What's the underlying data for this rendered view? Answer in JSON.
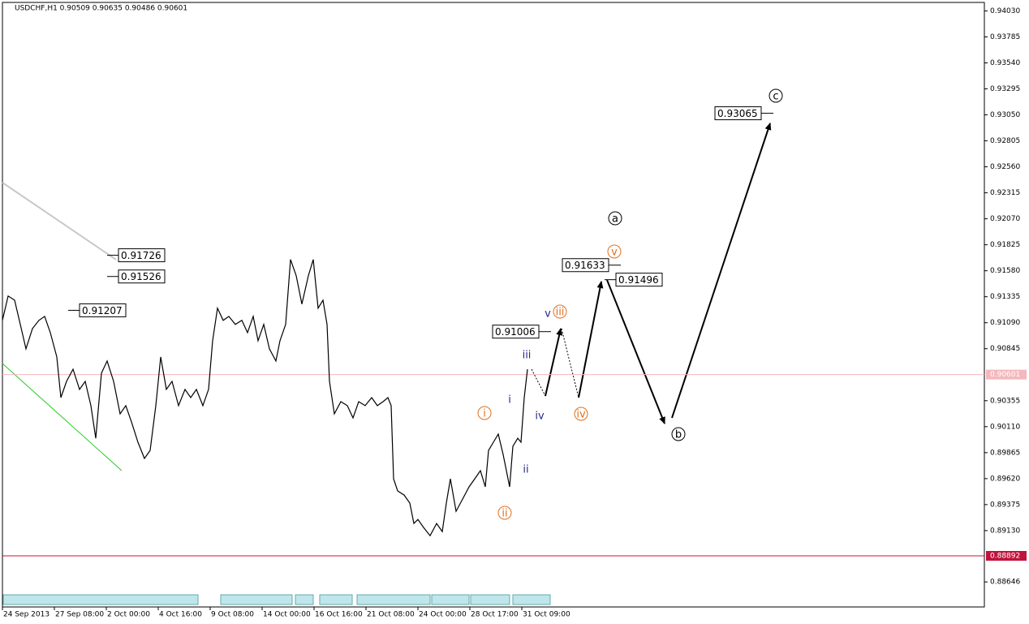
{
  "chart_data": {
    "type": "line",
    "title": "USDCHF,H1  0.90509 0.90635 0.90486 0.90601",
    "x": [
      0,
      7,
      15,
      22,
      29,
      37,
      45,
      52,
      59,
      67,
      72,
      79,
      87,
      95,
      102,
      109,
      115,
      122,
      129,
      137,
      145,
      152,
      159,
      167,
      175,
      182,
      189,
      195,
      202,
      209,
      217,
      225,
      232,
      239,
      247,
      254,
      259,
      265,
      272,
      279,
      287,
      295,
      302,
      309,
      315,
      322,
      329,
      337,
      342,
      349,
      355,
      362,
      369,
      377,
      383,
      389,
      395,
      400,
      403,
      409,
      417,
      425,
      432,
      439,
      447,
      455,
      462,
      469,
      475,
      479,
      482,
      487,
      495,
      502,
      507,
      512,
      519,
      527,
      535,
      542,
      547,
      552,
      559,
      567,
      575,
      582,
      589,
      595,
      599,
      605,
      611,
      617,
      621,
      625,
      629,
      635,
      639,
      643,
      647
    ],
    "series": [
      {
        "name": "USDCHF,H1",
        "color": "#000000",
        "values": [
          0.91112,
          0.91342,
          0.91303,
          0.91074,
          0.90844,
          0.91035,
          0.91112,
          0.9115,
          0.90997,
          0.90767,
          0.90384,
          0.90537,
          0.90652,
          0.90461,
          0.90537,
          0.90308,
          0.90001,
          0.90614,
          0.90729,
          0.90537,
          0.90231,
          0.90308,
          0.90155,
          0.89963,
          0.8981,
          0.89886,
          0.90308,
          0.90767,
          0.90461,
          0.90537,
          0.90308,
          0.90461,
          0.90384,
          0.90461,
          0.90308,
          0.90461,
          0.9092,
          0.91227,
          0.91112,
          0.9115,
          0.91074,
          0.91112,
          0.90997,
          0.9115,
          0.9092,
          0.91074,
          0.90844,
          0.90729,
          0.9092,
          0.91074,
          0.91686,
          0.91533,
          0.91265,
          0.91533,
          0.91686,
          0.91227,
          0.91303,
          0.91074,
          0.90537,
          0.90231,
          0.90346,
          0.90308,
          0.90193,
          0.90346,
          0.90308,
          0.90384,
          0.90308,
          0.90346,
          0.90384,
          0.90308,
          0.89618,
          0.89504,
          0.89465,
          0.89389,
          0.89197,
          0.89235,
          0.89159,
          0.89082,
          0.89197,
          0.89121,
          0.89389,
          0.89618,
          0.89312,
          0.89427,
          0.89542,
          0.89618,
          0.89695,
          0.89542,
          0.89886,
          0.89963,
          0.9004,
          0.89848,
          0.89695,
          0.89542,
          0.89925,
          0.90001,
          0.89963,
          0.90384,
          0.90652
        ]
      }
    ],
    "xlim": [
      0,
      1210
    ],
    "ylim": [
      0.8841,
      0.9411
    ],
    "xticks": [
      {
        "value": 0,
        "label": "24 Sep 2013"
      },
      {
        "value": 64,
        "label": "27 Sep 08:00"
      },
      {
        "value": 128,
        "label": "2 Oct 00:00"
      },
      {
        "value": 192,
        "label": "4 Oct 16:00"
      },
      {
        "value": 256,
        "label": "9 Oct 08:00"
      },
      {
        "value": 320,
        "label": "14 Oct 00:00"
      },
      {
        "value": 384,
        "label": "16 Oct 16:00"
      },
      {
        "value": 448,
        "label": "21 Oct 08:00"
      },
      {
        "value": 512,
        "label": "24 Oct 00:00"
      },
      {
        "value": 576,
        "label": "28 Oct 17:00"
      },
      {
        "value": 640,
        "label": "31 Oct 09:00"
      }
    ],
    "yticks": [
      {
        "value": 0.9403,
        "label": "0.94030"
      },
      0.93785,
      {
        "value": 0.9354,
        "label": "0.93540"
      },
      0.93295,
      {
        "value": 0.9305,
        "label": "0.93050"
      },
      0.92805,
      {
        "value": 0.9256,
        "label": "0.92560"
      },
      0.92315,
      {
        "value": 0.9207,
        "label": "0.92070"
      },
      0.91825,
      {
        "value": 0.9158,
        "label": "0.91580"
      },
      0.91335,
      {
        "value": 0.9109,
        "label": "0.91090"
      },
      0.90845,
      0.90355,
      {
        "value": 0.9011,
        "label": "0.90110"
      },
      0.89865,
      {
        "value": 0.8962,
        "label": "0.89620"
      },
      0.89375,
      {
        "value": 0.8913,
        "label": "0.89130"
      },
      0.88646
    ],
    "current_price": {
      "value": 0.90601,
      "label": "0.90601",
      "color": "#f4b8bd"
    },
    "low_line": {
      "value": 0.88892,
      "label": "0.88892",
      "color": "#c0143c"
    },
    "price_marks": [
      0.91726,
      0.91526,
      0.91207,
      0.91006,
      0.91633,
      0.91496,
      0.93065
    ],
    "minor_waves": {
      "color": "#e07020",
      "labels": [
        "i",
        "ii",
        "iii",
        "iv",
        "v"
      ]
    },
    "subminor_waves": {
      "color": "#28288c",
      "labels": [
        "i",
        "ii",
        "iii",
        "iv",
        "v"
      ]
    },
    "major_waves": {
      "color": "#000000",
      "labels": [
        "a",
        "b",
        "c"
      ]
    }
  }
}
